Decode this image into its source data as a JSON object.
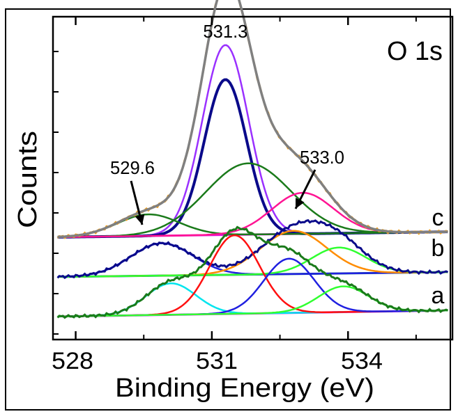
{
  "chart_data": {
    "type": "line",
    "title": "",
    "panel_label": "O 1s",
    "xlabel": "Binding Energy (eV)",
    "ylabel": "Counts",
    "xlim": [
      527.5,
      536.3
    ],
    "x_ticks": [
      528,
      531,
      534
    ],
    "x_tick_labels": [
      "528",
      "531",
      "534"
    ],
    "x_minor_ticks": [
      529.5,
      532.5,
      535.5
    ],
    "y_ticks_count": 8,
    "grid": false,
    "legend": "none",
    "annotations": [
      {
        "text": "531.3",
        "x": 531.3
      },
      {
        "text": "529.6",
        "x": 529.6
      },
      {
        "text": "533.0",
        "x": 533.0
      }
    ],
    "spectrum_labels": [
      "c",
      "b",
      "a"
    ],
    "colors": {
      "envelope": "#808080",
      "raw": "#f0a020",
      "baseline": "#e010e0",
      "sum_fit": "#1a7a1a",
      "component_violet": "#9a30ff",
      "component_navy": "#0a0a8a",
      "component_green": "#1a7a1a",
      "component_pink": "#ff1493",
      "component_red": "#ff1010",
      "component_blue": "#2020e0",
      "component_orange": "#ff8c00",
      "component_cyan": "#00e5ee",
      "component_lime": "#30ff30",
      "baseline_b": "#0a6a7a"
    },
    "spectra": [
      {
        "label": "c",
        "peaks_ev": [
          531.3,
          529.6,
          533.0
        ],
        "components": [
          {
            "center": 531.3,
            "height": 0.88,
            "fwhm": 1.2,
            "color": "component_violet"
          },
          {
            "center": 531.3,
            "height": 0.72,
            "fwhm": 1.1,
            "color": "component_navy"
          },
          {
            "center": 531.8,
            "height": 0.33,
            "fwhm": 2.2,
            "color": "component_green"
          },
          {
            "center": 529.6,
            "height": 0.1,
            "fwhm": 1.6,
            "color": "component_green"
          },
          {
            "center": 533.0,
            "height": 0.19,
            "fwhm": 1.6,
            "color": "component_pink"
          }
        ]
      },
      {
        "label": "b",
        "components": [
          {
            "center": 529.9,
            "height": 0.15,
            "fwhm": 1.6,
            "color": "component_blue"
          },
          {
            "center": 532.8,
            "height": 0.2,
            "fwhm": 1.7,
            "color": "component_orange"
          },
          {
            "center": 533.8,
            "height": 0.12,
            "fwhm": 1.4,
            "color": "component_lime"
          }
        ]
      },
      {
        "label": "a",
        "components": [
          {
            "center": 530.1,
            "height": 0.22,
            "fwhm": 1.3,
            "color": "component_cyan"
          },
          {
            "center": 531.5,
            "height": 0.55,
            "fwhm": 1.3,
            "color": "component_red"
          },
          {
            "center": 532.7,
            "height": 0.38,
            "fwhm": 1.3,
            "color": "component_blue"
          },
          {
            "center": 533.9,
            "height": 0.18,
            "fwhm": 1.3,
            "color": "component_lime"
          }
        ]
      }
    ]
  }
}
